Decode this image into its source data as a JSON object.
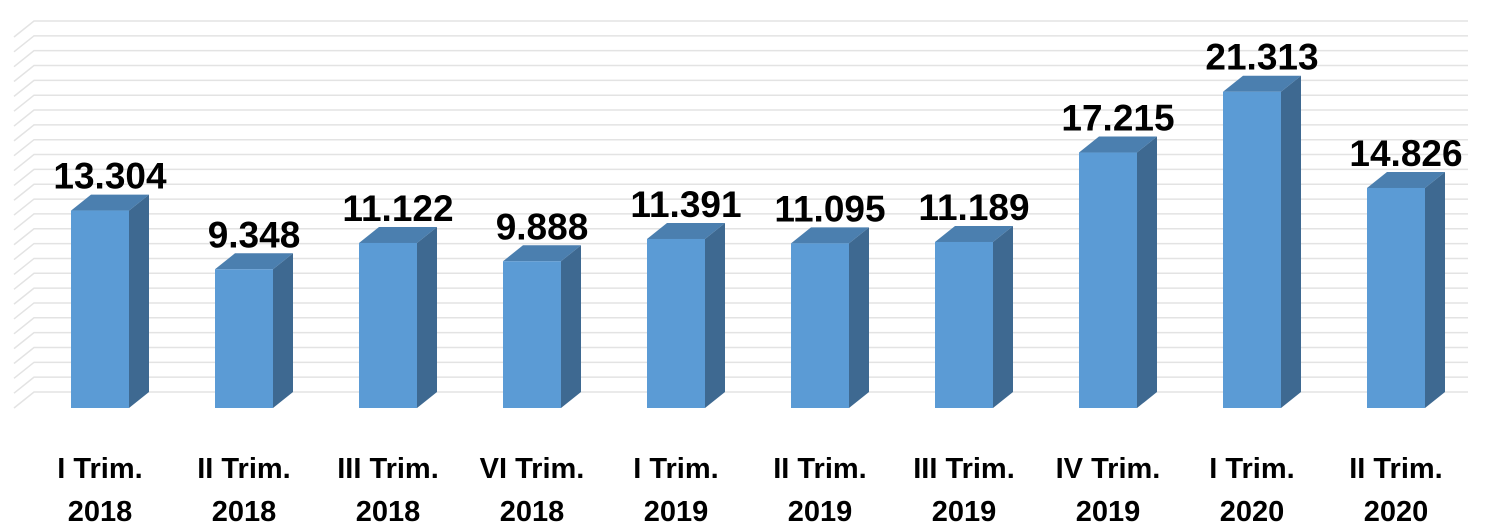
{
  "chart_data": {
    "type": "bar",
    "categories": [
      "I Trim. 2018",
      "II Trim. 2018",
      "III Trim. 2018",
      "VI Trim. 2018",
      "I Trim. 2019",
      "II Trim. 2019",
      "III Trim. 2019",
      "IV Trim. 2019",
      "I Trim. 2020",
      "II Trim. 2020"
    ],
    "values": [
      13304,
      9348,
      11122,
      9888,
      11391,
      11095,
      11189,
      17215,
      21313,
      14826
    ],
    "value_labels": [
      "13.304",
      "9.348",
      "11.122",
      "9.888",
      "11.391",
      "11.095",
      "11.189",
      "17.215",
      "21.313",
      "14.826"
    ],
    "color": "#5b9bd5",
    "ylim": [
      0,
      25000
    ],
    "yticks": [
      0,
      1000,
      2000,
      3000,
      4000,
      5000,
      6000,
      7000,
      8000,
      9000,
      10000,
      11000,
      12000,
      13000,
      14000,
      15000,
      16000,
      17000,
      18000,
      19000,
      20000,
      21000,
      22000,
      23000,
      24000,
      25000
    ],
    "grid": true
  }
}
